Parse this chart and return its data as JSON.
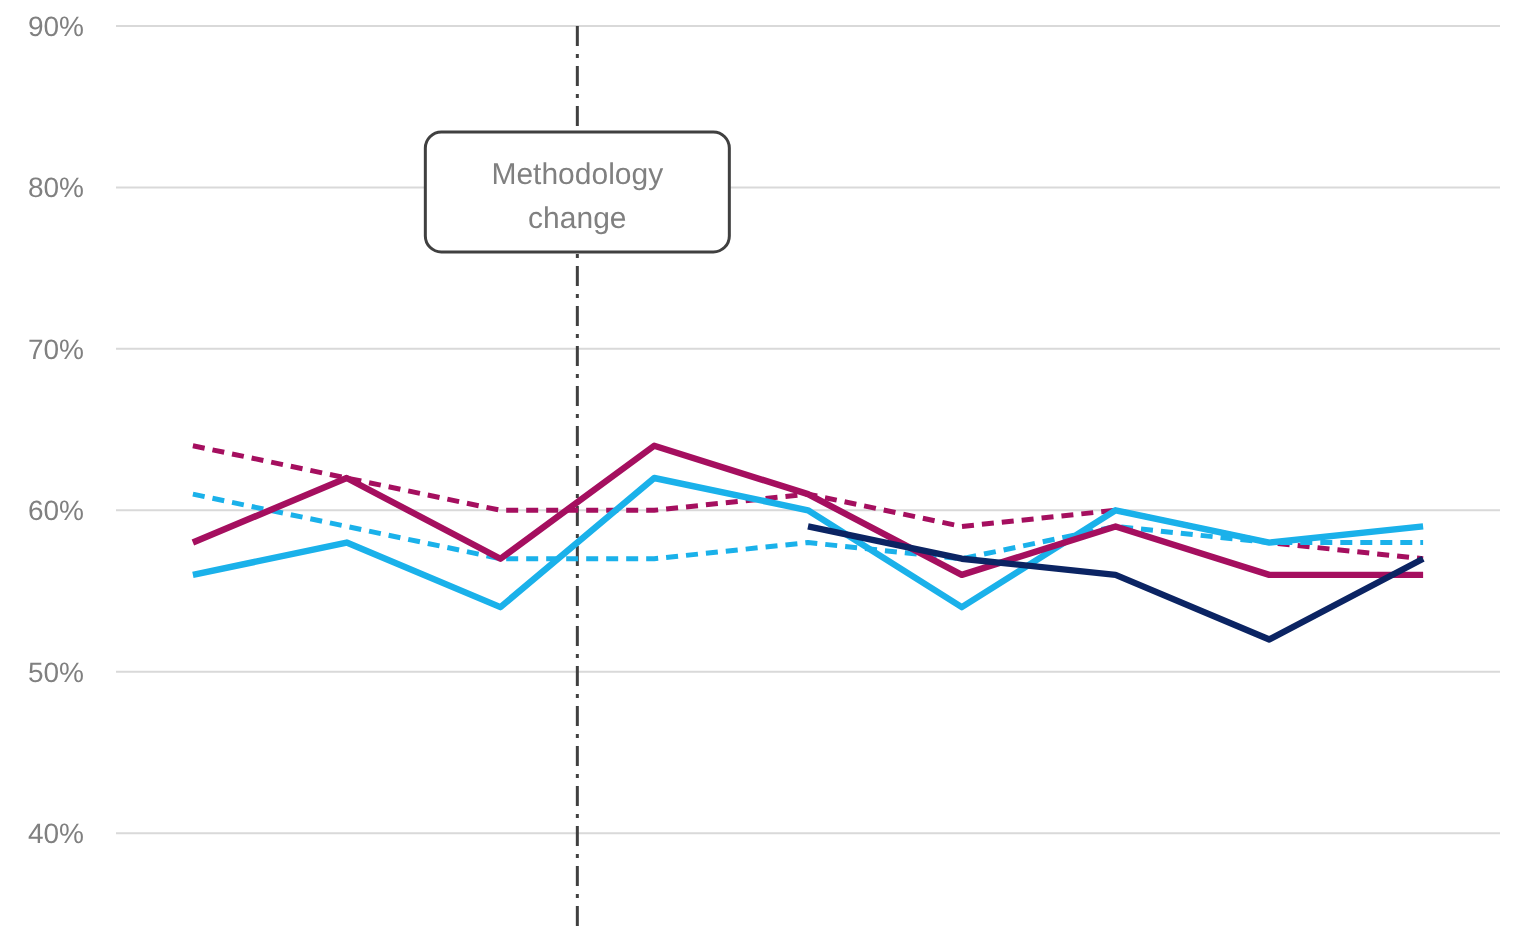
{
  "chart_data": {
    "type": "line",
    "categories": [
      null,
      null,
      null,
      null,
      null,
      null,
      null,
      null,
      null
    ],
    "ylim": [
      34,
      90
    ],
    "yticks": [
      {
        "value": 40,
        "label": "40%"
      },
      {
        "value": 50,
        "label": "50%"
      },
      {
        "value": 60,
        "label": "60%"
      },
      {
        "value": 70,
        "label": "70%"
      },
      {
        "value": 80,
        "label": "80%"
      },
      {
        "value": 90,
        "label": "90%"
      }
    ],
    "tick_labels": "y",
    "grid": "y",
    "marker": "none",
    "series": [
      {
        "color": "#a50f5f",
        "line_style": "dashed",
        "values": [
          64,
          62,
          60,
          60,
          61,
          59,
          60,
          58,
          57
        ]
      },
      {
        "color": "#1ab1ea",
        "line_style": "dashed",
        "values": [
          61,
          59,
          57,
          57,
          58,
          57,
          59,
          58,
          58
        ]
      },
      {
        "color": "#1ab1ea",
        "line_style": "solid",
        "values": [
          56,
          58,
          54,
          62,
          60,
          54,
          60,
          58,
          59
        ]
      },
      {
        "color": "#a50f5f",
        "line_style": "solid",
        "values": [
          58,
          62,
          57,
          64,
          61,
          56,
          59,
          56,
          56
        ]
      },
      {
        "color": "#0b2463",
        "line_style": "solid",
        "values": [
          null,
          null,
          null,
          null,
          59,
          57,
          56,
          52,
          57
        ]
      }
    ],
    "annotations": [
      "Methodology change"
    ]
  }
}
